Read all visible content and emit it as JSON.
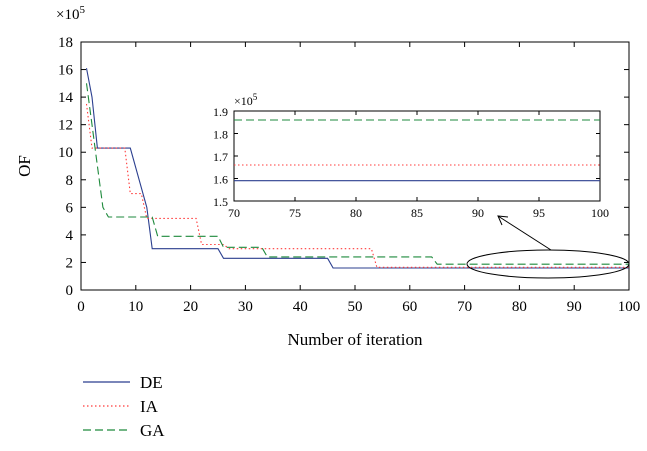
{
  "chart_data": [
    {
      "type": "line",
      "xlabel": "Number of iteration",
      "ylabel": "OF",
      "y_multiplier": "×10",
      "y_multiplier_exp": "5",
      "xlim": [
        0,
        100
      ],
      "ylim": [
        0,
        18
      ],
      "x_ticks": [
        "0",
        "10",
        "20",
        "30",
        "40",
        "50",
        "60",
        "70",
        "80",
        "90",
        "100"
      ],
      "y_ticks": [
        "0",
        "2",
        "4",
        "6",
        "8",
        "10",
        "12",
        "14",
        "16",
        "18"
      ],
      "grid": false,
      "series": [
        {
          "name": "DE",
          "color": "#2b3f8f",
          "dash": "solid",
          "points": [
            [
              1,
              16.1
            ],
            [
              2,
              14
            ],
            [
              3,
              10.3
            ],
            [
              9,
              10.3
            ],
            [
              12,
              6
            ],
            [
              13,
              3
            ],
            [
              25,
              3
            ],
            [
              26,
              2.3
            ],
            [
              45,
              2.3
            ],
            [
              46,
              1.6
            ],
            [
              100,
              1.6
            ]
          ]
        },
        {
          "name": "IA",
          "color": "#ff3b3b",
          "dash": "dotted",
          "points": [
            [
              1,
              13.5
            ],
            [
              2,
              10.3
            ],
            [
              3,
              10.3
            ],
            [
              8,
              10.3
            ],
            [
              9,
              7
            ],
            [
              11,
              7
            ],
            [
              12,
              5.2
            ],
            [
              21,
              5.2
            ],
            [
              22,
              3.3
            ],
            [
              26,
              3.3
            ],
            [
              27,
              3
            ],
            [
              53,
              3
            ],
            [
              54,
              1.65
            ],
            [
              100,
              1.65
            ]
          ]
        },
        {
          "name": "GA",
          "color": "#1e8a3c",
          "dash": "dashed",
          "points": [
            [
              1,
              15
            ],
            [
              2,
              12
            ],
            [
              3,
              9
            ],
            [
              4,
              6
            ],
            [
              5,
              5.3
            ],
            [
              13,
              5.3
            ],
            [
              14,
              3.9
            ],
            [
              25,
              3.9
            ],
            [
              26,
              3.1
            ],
            [
              33,
              3.1
            ],
            [
              34,
              2.4
            ],
            [
              64,
              2.4
            ],
            [
              65,
              1.87
            ],
            [
              100,
              1.87
            ]
          ]
        }
      ],
      "legend": {
        "placement": "below-chart",
        "entries": [
          "DE",
          "IA",
          "GA"
        ]
      }
    },
    {
      "type": "line",
      "role": "inset-zoom",
      "xlim": [
        70,
        100
      ],
      "ylim": [
        1.5,
        1.9
      ],
      "y_multiplier": "×10",
      "y_multiplier_exp": "5",
      "x_ticks": [
        "70",
        "75",
        "80",
        "85",
        "90",
        "95",
        "100"
      ],
      "y_ticks": [
        "1.5",
        "1.6",
        "1.7",
        "1.8",
        "1.9"
      ],
      "series": [
        {
          "name": "DE",
          "color": "#2b3f8f",
          "dash": "solid",
          "points": [
            [
              70,
              1.59
            ],
            [
              100,
              1.59
            ]
          ]
        },
        {
          "name": "IA",
          "color": "#ff3b3b",
          "dash": "dotted",
          "points": [
            [
              70,
              1.66
            ],
            [
              100,
              1.66
            ]
          ]
        },
        {
          "name": "GA",
          "color": "#1e8a3c",
          "dash": "dashed",
          "points": [
            [
              70,
              1.86
            ],
            [
              100,
              1.86
            ]
          ]
        }
      ]
    }
  ]
}
